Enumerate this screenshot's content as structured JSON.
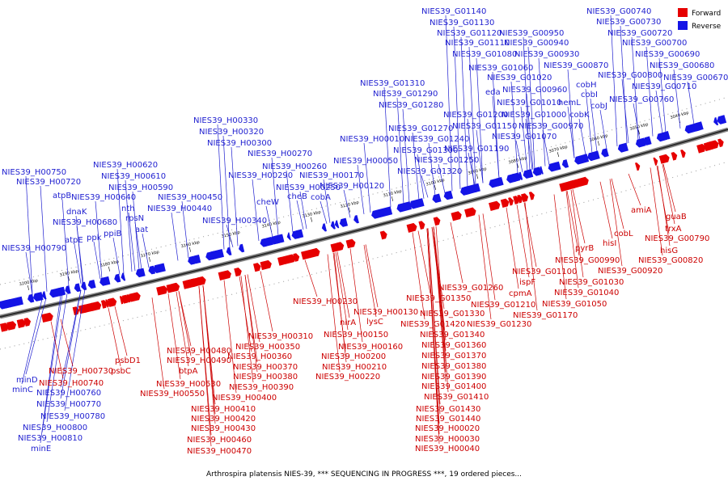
{
  "legend": {
    "forward_label": "Forward",
    "reverse_label": "Reverse",
    "forward_color": "#e60000",
    "reverse_color": "#1414e6"
  },
  "caption": "Arthrospira platensis NIES-39, *** SEQUENCING IN PROGRESS ***, 19 ordered pieces...",
  "ticks": [
    "3200 kbp",
    "3190 kbp",
    "3180 kbp",
    "3170 kbp",
    "3160 kbp",
    "3150 kbp",
    "3140 kbp",
    "3130 kbp",
    "3120 kbp",
    "3110 kbp",
    "3100 kbp",
    "3090 kbp",
    "3080 kbp",
    "3070 kbp",
    "3060 kbp",
    "3050 kbp",
    "3040 kbp"
  ],
  "reverse_labels": [
    "NIES39_G00740",
    "NIES39_G00730",
    "NIES39_G00720",
    "NIES39_G00700",
    "NIES39_G00690",
    "NIES39_G00680",
    "NIES39_G00670",
    "NIES39_G00710",
    "NIES39_G00760",
    "NIES39_G00800",
    "NIES39_G01140",
    "NIES39_G01130",
    "NIES39_G01120",
    "NIES39_G01110",
    "NIES39_G01080",
    "NIES39_G00950",
    "NIES39_G00940",
    "NIES39_G00930",
    "NIES39_G00870",
    "NIES39_G01060",
    "NIES39_G01020",
    "NIES39_G00960",
    "cobH",
    "cobI",
    "cobJ",
    "hemL",
    "cobK",
    "NIES39_G01010",
    "NIES39_G01000",
    "NIES39_G00970",
    "NIES39_G01070",
    "NIES39_G01310",
    "NIES39_G01290",
    "NIES39_G01280",
    "NIES39_G01200",
    "NIES39_G01270",
    "NIES39_G01150",
    "NIES39_G01240",
    "NIES39_G01300",
    "NIES39_G01190",
    "NIES39_G01250",
    "NIES39_G01320",
    "eda",
    "NIES39_H00010",
    "NIES39_H00050",
    "NIES39_H00170",
    "NIES39_H00120",
    "cobA",
    "cheB",
    "cheW",
    "NIES39_H00250",
    "NIES39_H00260",
    "NIES39_H00270",
    "NIES39_H00290",
    "NIES39_H00300",
    "NIES39_H00320",
    "NIES39_H00330",
    "NIES39_H00340",
    "NIES39_H00440",
    "NIES39_H00450",
    "aat",
    "rpsN",
    "nth",
    "NIES39_H00590",
    "NIES39_H00610",
    "NIES39_H00620",
    "NIES39_H00640",
    "NIES39_H00680",
    "ppiB",
    "ppk",
    "atpE",
    "dnaK",
    "atpB",
    "NIES39_H00720",
    "NIES39_H00750",
    "NIES39_H00790",
    "minD",
    "minC",
    "NIES39_H00760",
    "NIES39_H00770",
    "NIES39_H00780",
    "NIES39_H00800",
    "NIES39_H00810",
    "minE"
  ],
  "forward_labels": [
    "amiA",
    "guaB",
    "trxA",
    "NIES39_G00790",
    "hisG",
    "NIES39_G00820",
    "cobL",
    "hisI",
    "pyrB",
    "NIES39_G00990",
    "NIES39_G00920",
    "NIES39_G01030",
    "NIES39_G01040",
    "NIES39_G01050",
    "NIES39_G01100",
    "ispF",
    "cpmA",
    "NIES39_G01170",
    "NIES39_G01210",
    "NIES39_G01230",
    "NIES39_G01260",
    "NIES39_G01350",
    "NIES39_G01330",
    "NIES39_G01420",
    "NIES39_G01340",
    "NIES39_G01360",
    "NIES39_G01370",
    "NIES39_G01380",
    "NIES39_G01390",
    "NIES39_G01400",
    "NIES39_G01410",
    "NIES39_G01430",
    "NIES39_G01440",
    "NIES39_H00020",
    "NIES39_H00030",
    "NIES39_H00040",
    "NIES39_H00130",
    "lysC",
    "nirA",
    "NIES39_H00150",
    "NIES39_H00160",
    "NIES39_H00200",
    "NIES39_H00210",
    "NIES39_H00220",
    "NIES39_H00230",
    "NIES39_H00310",
    "NIES39_H00350",
    "NIES39_H00360",
    "NIES39_H00370",
    "NIES39_H00380",
    "NIES39_H00390",
    "NIES39_H00400",
    "NIES39_H00410",
    "NIES39_H00420",
    "NIES39_H00430",
    "NIES39_H00460",
    "NIES39_H00470",
    "NIES39_H00480",
    "NIES39_H00490",
    "btpA",
    "NIES39_H00530",
    "NIES39_H00550",
    "psbD1",
    "psbC",
    "NIES39_H00730",
    "NIES39_H00740"
  ]
}
